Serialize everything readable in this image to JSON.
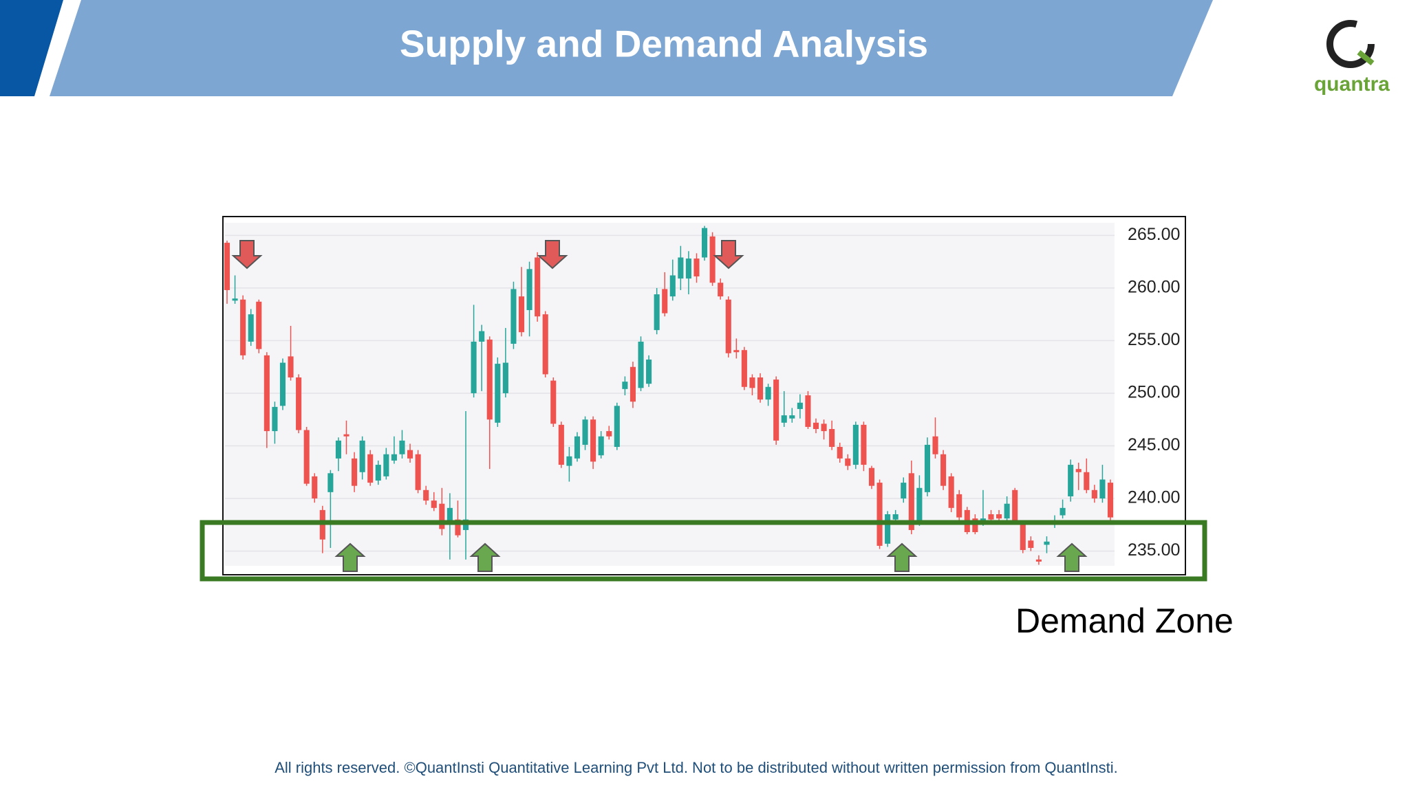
{
  "header": {
    "title": "Supply and Demand Analysis"
  },
  "logo": {
    "text": "quantra"
  },
  "footer": {
    "text": "All rights reserved. ©QuantInsti Quantitative Learning Pvt Ltd. Not to be distributed without written permission from QuantInsti."
  },
  "chart_data": {
    "type": "candlestick",
    "annotation": "Demand Zone",
    "up_color": "#26a69a",
    "down_color": "#ef5350",
    "ylim": [
      233.6,
      266.2
    ],
    "yticks": [
      {
        "value": 235,
        "label": "235.00"
      },
      {
        "value": 240,
        "label": "240.00"
      },
      {
        "value": 245,
        "label": "245.00"
      },
      {
        "value": 250,
        "label": "250.00"
      },
      {
        "value": 255,
        "label": "255.00"
      },
      {
        "value": 260,
        "label": "260.00"
      },
      {
        "value": 265,
        "label": "265.00"
      }
    ],
    "grid": true,
    "ohlc": [
      [
        264.3,
        264.5,
        258.5,
        259.8
      ],
      [
        258.8,
        261.2,
        258.5,
        259.0
      ],
      [
        258.9,
        259.3,
        253.2,
        253.6
      ],
      [
        254.9,
        258.0,
        254.5,
        257.5
      ],
      [
        258.7,
        258.9,
        253.8,
        254.2
      ],
      [
        253.6,
        253.9,
        244.8,
        246.4
      ],
      [
        246.4,
        249.2,
        245.2,
        248.7
      ],
      [
        248.8,
        253.3,
        248.4,
        252.9
      ],
      [
        253.5,
        256.4,
        251.2,
        251.5
      ],
      [
        251.5,
        251.8,
        246.2,
        246.5
      ],
      [
        246.5,
        246.8,
        241.2,
        241.4
      ],
      [
        242.1,
        242.4,
        239.6,
        240.0
      ],
      [
        238.9,
        239.3,
        234.8,
        236.1
      ],
      [
        240.6,
        242.7,
        235.3,
        242.4
      ],
      [
        243.8,
        245.8,
        242.6,
        245.5
      ],
      [
        246.1,
        247.4,
        244.2,
        245.9
      ],
      [
        243.8,
        244.4,
        240.6,
        241.2
      ],
      [
        242.5,
        245.9,
        241.8,
        245.5
      ],
      [
        244.2,
        244.6,
        241.2,
        241.5
      ],
      [
        241.7,
        243.6,
        241.3,
        243.2
      ],
      [
        242.1,
        244.8,
        241.8,
        244.2
      ],
      [
        243.6,
        245.9,
        243.3,
        244.2
      ],
      [
        244.2,
        246.5,
        243.8,
        245.5
      ],
      [
        244.6,
        245.2,
        243.4,
        243.8
      ],
      [
        244.2,
        244.6,
        240.5,
        240.8
      ],
      [
        240.8,
        241.2,
        239.4,
        239.8
      ],
      [
        239.8,
        240.6,
        238.8,
        239.1
      ],
      [
        239.5,
        241.0,
        236.5,
        237.1
      ],
      [
        237.8,
        240.5,
        234.2,
        239.1
      ],
      [
        238.0,
        239.8,
        236.3,
        236.5
      ],
      [
        237.0,
        248.3,
        234.2,
        238.0
      ],
      [
        250.0,
        258.4,
        249.6,
        254.9
      ],
      [
        254.9,
        256.5,
        250.2,
        255.9
      ],
      [
        255.1,
        255.4,
        242.8,
        247.5
      ],
      [
        247.2,
        253.4,
        246.8,
        252.8
      ],
      [
        250.0,
        256.2,
        249.6,
        252.9
      ],
      [
        254.7,
        260.6,
        254.2,
        259.9
      ],
      [
        259.2,
        262.0,
        255.4,
        255.8
      ],
      [
        257.9,
        262.5,
        255.4,
        261.8
      ],
      [
        262.9,
        263.4,
        256.8,
        257.3
      ],
      [
        257.5,
        257.8,
        251.5,
        251.8
      ],
      [
        251.2,
        251.5,
        246.8,
        247.1
      ],
      [
        247.0,
        247.3,
        242.9,
        243.2
      ],
      [
        243.1,
        244.9,
        241.6,
        244.0
      ],
      [
        243.8,
        246.3,
        243.5,
        245.9
      ],
      [
        245.1,
        247.8,
        244.6,
        247.5
      ],
      [
        247.5,
        247.8,
        242.8,
        243.5
      ],
      [
        244.1,
        246.4,
        243.8,
        245.9
      ],
      [
        246.4,
        246.9,
        245.6,
        245.9
      ],
      [
        244.9,
        249.1,
        244.6,
        248.8
      ],
      [
        250.4,
        251.6,
        249.8,
        251.1
      ],
      [
        252.5,
        253.0,
        248.6,
        249.2
      ],
      [
        250.5,
        255.4,
        250.2,
        254.9
      ],
      [
        250.9,
        253.6,
        250.6,
        253.2
      ],
      [
        256.0,
        260.0,
        255.6,
        259.4
      ],
      [
        259.9,
        261.5,
        257.3,
        257.6
      ],
      [
        259.2,
        262.7,
        258.8,
        261.2
      ],
      [
        260.9,
        264.0,
        259.8,
        262.9
      ],
      [
        260.9,
        263.5,
        259.4,
        262.8
      ],
      [
        262.8,
        263.3,
        260.5,
        261.1
      ],
      [
        262.9,
        265.9,
        262.6,
        265.7
      ],
      [
        264.9,
        265.3,
        260.2,
        260.5
      ],
      [
        260.5,
        260.9,
        258.9,
        259.2
      ],
      [
        258.9,
        259.2,
        253.4,
        253.8
      ],
      [
        254.1,
        255.2,
        253.3,
        253.9
      ],
      [
        254.1,
        254.4,
        250.3,
        250.6
      ],
      [
        251.5,
        251.8,
        249.8,
        250.5
      ],
      [
        251.5,
        251.9,
        249.1,
        249.4
      ],
      [
        249.4,
        250.9,
        248.8,
        250.6
      ],
      [
        251.3,
        251.6,
        245.1,
        245.5
      ],
      [
        247.2,
        250.2,
        246.8,
        247.9
      ],
      [
        247.6,
        248.6,
        247.2,
        247.9
      ],
      [
        248.5,
        249.9,
        247.6,
        249.1
      ],
      [
        249.8,
        250.2,
        246.6,
        246.8
      ],
      [
        247.2,
        247.6,
        246.2,
        246.6
      ],
      [
        247.1,
        247.5,
        245.6,
        246.4
      ],
      [
        246.6,
        247.4,
        244.6,
        244.9
      ],
      [
        244.9,
        245.3,
        243.4,
        243.8
      ],
      [
        243.8,
        244.2,
        242.7,
        243.1
      ],
      [
        243.2,
        247.3,
        242.8,
        247.0
      ],
      [
        247.0,
        247.3,
        242.6,
        243.2
      ],
      [
        242.9,
        243.1,
        240.9,
        241.2
      ],
      [
        241.5,
        241.8,
        235.2,
        235.5
      ],
      [
        235.7,
        238.8,
        235.4,
        238.5
      ],
      [
        238.0,
        238.9,
        237.6,
        238.5
      ],
      [
        240.0,
        242.0,
        239.6,
        241.5
      ],
      [
        242.4,
        243.6,
        236.6,
        237.0
      ],
      [
        237.8,
        242.2,
        237.4,
        241.0
      ],
      [
        240.6,
        245.8,
        240.2,
        245.1
      ],
      [
        245.9,
        247.7,
        243.8,
        244.2
      ],
      [
        244.2,
        244.6,
        240.8,
        241.2
      ],
      [
        242.1,
        242.4,
        238.7,
        239.1
      ],
      [
        240.4,
        240.8,
        237.8,
        238.2
      ],
      [
        238.9,
        239.2,
        236.6,
        236.8
      ],
      [
        238.1,
        238.5,
        236.6,
        236.8
      ],
      [
        237.8,
        240.8,
        237.4,
        238.1
      ],
      [
        238.5,
        238.9,
        237.6,
        238.0
      ],
      [
        238.5,
        238.9,
        237.7,
        238.1
      ],
      [
        238.1,
        240.2,
        237.6,
        239.5
      ],
      [
        240.8,
        241.0,
        237.5,
        237.8
      ],
      [
        237.6,
        237.9,
        234.8,
        235.1
      ],
      [
        236.0,
        236.4,
        235.0,
        235.3
      ],
      [
        234.2,
        234.6,
        233.7,
        234.0
      ],
      [
        235.6,
        236.4,
        234.8,
        235.9
      ],
      [
        237.6,
        238.4,
        237.2,
        237.8
      ],
      [
        238.4,
        239.9,
        238.1,
        239.1
      ],
      [
        240.2,
        243.7,
        239.7,
        243.2
      ],
      [
        242.8,
        243.4,
        240.8,
        242.5
      ],
      [
        242.5,
        243.8,
        240.5,
        240.8
      ],
      [
        240.8,
        241.3,
        239.6,
        240.0
      ],
      [
        240.0,
        243.2,
        239.6,
        241.8
      ],
      [
        241.5,
        241.8,
        237.9,
        238.2
      ]
    ]
  }
}
